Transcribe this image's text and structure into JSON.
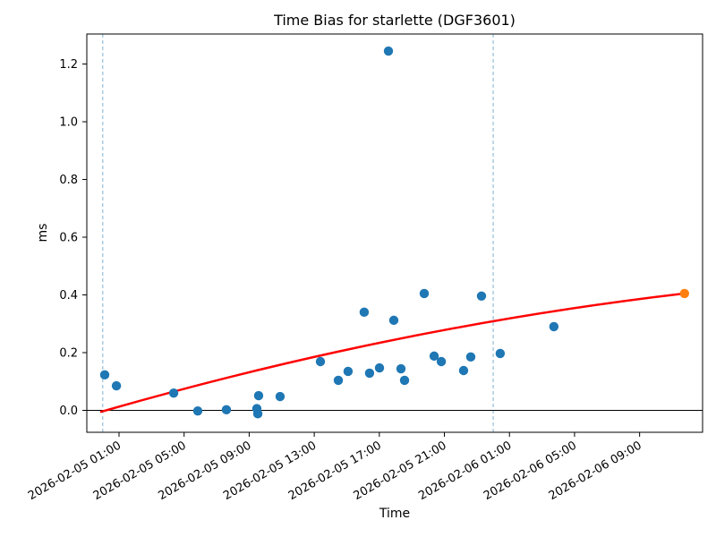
{
  "chart_data": {
    "type": "scatter",
    "title": "Time Bias for starlette (DGF3601)",
    "xlabel": "Time",
    "ylabel": "ms",
    "x_axis": {
      "epoch": "2026-02-05 00:00",
      "lim_hours": [
        -0.98,
        36.87
      ],
      "ticks": [
        {
          "hours": 1,
          "label": "2026-02-05 01:00"
        },
        {
          "hours": 5,
          "label": "2026-02-05 05:00"
        },
        {
          "hours": 9,
          "label": "2026-02-05 09:00"
        },
        {
          "hours": 13,
          "label": "2026-02-05 13:00"
        },
        {
          "hours": 17,
          "label": "2026-02-05 17:00"
        },
        {
          "hours": 21,
          "label": "2026-02-05 21:00"
        },
        {
          "hours": 25,
          "label": "2026-02-06 01:00"
        },
        {
          "hours": 29,
          "label": "2026-02-06 05:00"
        },
        {
          "hours": 33,
          "label": "2026-02-06 09:00"
        }
      ]
    },
    "y_axis": {
      "lim": [
        -0.076,
        1.304
      ],
      "ticks": [
        {
          "value": 0.0,
          "label": "0.0"
        },
        {
          "value": 0.2,
          "label": "0.2"
        },
        {
          "value": 0.4,
          "label": "0.4"
        },
        {
          "value": 0.6,
          "label": "0.6"
        },
        {
          "value": 0.8,
          "label": "0.8"
        },
        {
          "value": 1.0,
          "label": "1.0"
        },
        {
          "value": 1.2,
          "label": "1.2"
        }
      ]
    },
    "series": [
      {
        "name": "time-bias-observations",
        "color": "#1f77b4",
        "marker_radius": 5.2,
        "points": [
          {
            "time": "2026-02-05 00:07",
            "hours": 0.12,
            "ms": 0.123
          },
          {
            "time": "2026-02-05 00:50",
            "hours": 0.84,
            "ms": 0.085
          },
          {
            "time": "2026-02-05 04:22",
            "hours": 4.36,
            "ms": 0.06
          },
          {
            "time": "2026-02-05 05:50",
            "hours": 5.84,
            "ms": -0.002
          },
          {
            "time": "2026-02-05 07:36",
            "hours": 7.6,
            "ms": 0.002
          },
          {
            "time": "2026-02-05 09:28",
            "hours": 9.47,
            "ms": 0.006
          },
          {
            "time": "2026-02-05 09:32",
            "hours": 9.53,
            "ms": -0.012
          },
          {
            "time": "2026-02-05 09:35",
            "hours": 9.58,
            "ms": 0.051
          },
          {
            "time": "2026-02-05 10:54",
            "hours": 10.9,
            "ms": 0.048
          },
          {
            "time": "2026-02-05 13:23",
            "hours": 13.38,
            "ms": 0.169
          },
          {
            "time": "2026-02-05 14:29",
            "hours": 14.48,
            "ms": 0.104
          },
          {
            "time": "2026-02-05 15:05",
            "hours": 15.08,
            "ms": 0.135
          },
          {
            "time": "2026-02-05 16:04",
            "hours": 16.07,
            "ms": 0.34
          },
          {
            "time": "2026-02-05 16:24",
            "hours": 16.4,
            "ms": 0.129
          },
          {
            "time": "2026-02-05 17:01",
            "hours": 17.01,
            "ms": 0.147
          },
          {
            "time": "2026-02-05 17:34",
            "hours": 17.56,
            "ms": 1.245
          },
          {
            "time": "2026-02-05 17:53",
            "hours": 17.89,
            "ms": 0.312
          },
          {
            "time": "2026-02-05 18:20",
            "hours": 18.33,
            "ms": 0.144
          },
          {
            "time": "2026-02-05 18:33",
            "hours": 18.55,
            "ms": 0.104
          },
          {
            "time": "2026-02-05 19:46",
            "hours": 19.76,
            "ms": 0.405
          },
          {
            "time": "2026-02-05 20:22",
            "hours": 20.37,
            "ms": 0.188
          },
          {
            "time": "2026-02-05 20:49",
            "hours": 20.81,
            "ms": 0.169
          },
          {
            "time": "2026-02-05 22:11",
            "hours": 22.18,
            "ms": 0.138
          },
          {
            "time": "2026-02-05 22:37",
            "hours": 22.62,
            "ms": 0.185
          },
          {
            "time": "2026-02-05 23:17",
            "hours": 23.28,
            "ms": 0.396
          },
          {
            "time": "2026-02-06 00:26",
            "hours": 24.43,
            "ms": 0.197
          },
          {
            "time": "2026-02-06 03:44",
            "hours": 27.73,
            "ms": 0.29
          }
        ]
      },
      {
        "name": "predicted-point",
        "color": "#ff7f0e",
        "marker_radius": 5.2,
        "points": [
          {
            "time": "2026-02-06 11:46",
            "hours": 35.76,
            "ms": 0.405
          }
        ]
      }
    ],
    "trend_line": {
      "name": "fit-curve",
      "color": "#ff0000",
      "width": 2.5,
      "start": {
        "hours": -0.1,
        "ms": -0.005
      },
      "control": {
        "hours": 17.83,
        "ms": 0.287
      },
      "end": {
        "hours": 35.76,
        "ms": 0.405
      }
    },
    "vlines": [
      {
        "time": "2026-02-05 00:00",
        "hours": 0,
        "color": "#7fb3d5",
        "style": "dashed"
      },
      {
        "time": "2026-02-06 00:00",
        "hours": 24,
        "color": "#7fb3d5",
        "style": "dashed"
      }
    ],
    "zero_line": {
      "value": 0.0,
      "color": "#000000"
    },
    "grid": false,
    "legend": "none"
  }
}
